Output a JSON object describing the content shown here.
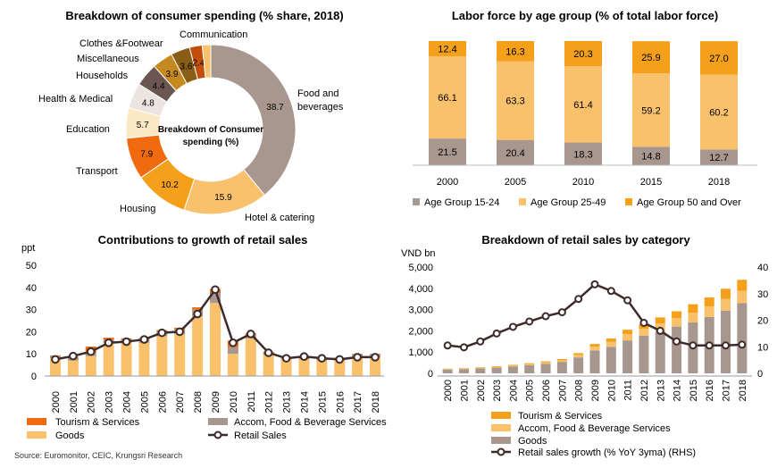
{
  "colors": {
    "food": "#a8978f",
    "hotel": "#f9c16b",
    "housing": "#f4a01b",
    "transport": "#f06a0f",
    "education": "#fde8c5",
    "health": "#ece4e0",
    "households": "#6b5652",
    "misc": "#c58a1f",
    "clothes": "#8a5d17",
    "communication": "#c24e0c",
    "age1524": "#a8978f",
    "age2549": "#f9c16b",
    "age50": "#f4a01b",
    "tourism": "#f06a0f",
    "accom": "#a8978f",
    "goods": "#f9c16b",
    "retail_line": "#3d2a2a",
    "cat_tourism": "#f4a01b",
    "cat_accom": "#f9c16b",
    "cat_goods": "#a8978f",
    "growth_line": "#3d2a2a"
  },
  "source": "Source: Euromonitor, CEIC, Krungsri Research",
  "chart_data": [
    {
      "type": "pie",
      "title": "Breakdown of consumer spending  (% share, 2018)",
      "center_label_1": "Breakdown of Consumer",
      "center_label_2": "spending (%)",
      "slices": [
        {
          "label": "Food and beverages",
          "label_1": "Food and",
          "label_2": "beverages",
          "value": 38.7
        },
        {
          "label": "Hotel & catering",
          "value": 15.9
        },
        {
          "label": "Housing",
          "value": 10.2
        },
        {
          "label": "Transport",
          "value": 7.9
        },
        {
          "label": "Education",
          "value": 5.7
        },
        {
          "label": "Health & Medical",
          "value": 4.8
        },
        {
          "label": "Households",
          "value": 4.4
        },
        {
          "label": "Miscellaneous",
          "value": 3.9
        },
        {
          "label": "Clothes &Footwear",
          "value": 3.6
        },
        {
          "label": "Communication",
          "value": 2.4
        },
        {
          "label": "",
          "value": 1.6
        }
      ]
    },
    {
      "type": "bar",
      "stacked": true,
      "title": "Labor force by age group (% of total labor force)",
      "categories": [
        "2000",
        "2005",
        "2010",
        "2015",
        "2018"
      ],
      "series": [
        {
          "name": "Age Group 15-24",
          "values": [
            21.5,
            20.4,
            18.3,
            14.8,
            12.7
          ]
        },
        {
          "name": "Age Group 25-49",
          "values": [
            66.1,
            63.3,
            61.4,
            59.2,
            60.2
          ]
        },
        {
          "name": "Age Group 50 and Over",
          "values": [
            12.4,
            16.3,
            20.3,
            25.9,
            27.0
          ]
        }
      ],
      "legend": "bottom"
    },
    {
      "type": "bar",
      "stacked": true,
      "title": "Contributions to growth of retail sales",
      "ylabel": "ppt",
      "ylim": [
        0,
        50
      ],
      "yticks": [
        "0",
        "10",
        "20",
        "30",
        "40",
        "50"
      ],
      "categories": [
        "2000",
        "2001",
        "2002",
        "2003",
        "2004",
        "2005",
        "2006",
        "2007",
        "2008",
        "2009",
        "2010",
        "2011",
        "2012",
        "2013",
        "2014",
        "2015",
        "2016",
        "2017",
        "2018"
      ],
      "series": [
        {
          "name": "Goods",
          "values": [
            8,
            7,
            9,
            15,
            15,
            15,
            18,
            19,
            27,
            33,
            10,
            17,
            9.5,
            7.5,
            7.5,
            7,
            7,
            8.5,
            8.5
          ]
        },
        {
          "name": "Accom, Food & Beverage Services",
          "values": [
            1,
            1.2,
            1.5,
            1.5,
            1.5,
            1.5,
            2,
            2,
            3,
            4.5,
            3,
            1.5,
            1,
            0.5,
            1,
            1,
            1,
            1.2,
            1.2
          ]
        },
        {
          "name": "Tourism & Services",
          "values": [
            0.3,
            0.5,
            2.8,
            0.8,
            0.5,
            0.6,
            0.7,
            0.8,
            1,
            1.8,
            3,
            0.8,
            0.5,
            0.2,
            0.2,
            0.3,
            0.3,
            0.3,
            0.3
          ]
        },
        {
          "name": "Retail Sales",
          "type": "line",
          "values": [
            7.5,
            9,
            11,
            15,
            15.5,
            16.5,
            19.5,
            20,
            28,
            39,
            15,
            19,
            10.5,
            8,
            8.8,
            8,
            7.5,
            8.5,
            8.5
          ]
        }
      ],
      "legend": "bottom"
    },
    {
      "type": "bar",
      "stacked": true,
      "title": "Breakdown of retail sales by category",
      "ylabel": "VND bn",
      "ylim": [
        0,
        5000
      ],
      "yticks": [
        "0",
        "1,000",
        "2,000",
        "3,000",
        "4,000",
        "5,000"
      ],
      "y2lim": [
        0,
        40
      ],
      "y2ticks": [
        "0",
        "10",
        "20",
        "30",
        "40"
      ],
      "categories": [
        "2000",
        "2001",
        "2002",
        "2003",
        "2004",
        "2005",
        "2006",
        "2007",
        "2008",
        "2009",
        "2010",
        "2011",
        "2012",
        "2013",
        "2014",
        "2015",
        "2016",
        "2017",
        "2018"
      ],
      "series": [
        {
          "name": "Goods",
          "values": [
            180,
            200,
            230,
            270,
            320,
            380,
            450,
            540,
            750,
            1080,
            1250,
            1550,
            1770,
            1950,
            2200,
            2400,
            2650,
            2950,
            3300
          ]
        },
        {
          "name": "Accom, Food & Beverage Services",
          "values": [
            20,
            22,
            28,
            34,
            42,
            52,
            62,
            75,
            120,
            180,
            230,
            300,
            320,
            400,
            400,
            450,
            500,
            550,
            580
          ]
        },
        {
          "name": "Tourism & Services",
          "values": [
            20,
            22,
            25,
            30,
            35,
            42,
            50,
            60,
            80,
            120,
            160,
            200,
            230,
            280,
            320,
            400,
            420,
            480,
            520
          ]
        },
        {
          "name": "Retail sales growth (% YoY 3yma) (RHS)",
          "type": "line",
          "axis": "right",
          "values": [
            10.5,
            9.8,
            12,
            15,
            17.5,
            19.5,
            21.5,
            23,
            28,
            33.5,
            31,
            27.5,
            19,
            16,
            12,
            10.5,
            10.5,
            10.5,
            10.8
          ]
        }
      ],
      "legend": "bottom"
    }
  ]
}
